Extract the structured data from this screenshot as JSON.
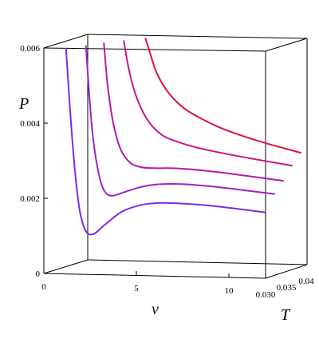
{
  "chart_data": {
    "type": "line",
    "title": "",
    "axes": {
      "x": {
        "label": "v",
        "range": [
          0,
          12
        ],
        "ticks": [
          "0",
          "5",
          "10"
        ]
      },
      "y": {
        "label": "P",
        "range": [
          0,
          0.006
        ],
        "ticks": [
          "0",
          "0.002",
          "0.004",
          "0.006"
        ]
      },
      "z": {
        "label": "T",
        "range": [
          0.03,
          0.04
        ],
        "ticks": [
          "0.030",
          "0.035",
          "0.04"
        ]
      }
    },
    "grid": false,
    "legend": "none",
    "colors": {
      "low_T": "#7b2be8",
      "high_T": "#e01040"
    },
    "series": [
      {
        "T": 0.03,
        "color": "#7b2be8",
        "points": [
          [
            1.2,
            0.006
          ],
          [
            1.4,
            0.0045
          ],
          [
            1.6,
            0.0032
          ],
          [
            1.8,
            0.0022
          ],
          [
            2.0,
            0.00155
          ],
          [
            2.3,
            0.00113
          ],
          [
            2.7,
            0.00108
          ],
          [
            3.3,
            0.00133
          ],
          [
            4.2,
            0.00168
          ],
          [
            5.2,
            0.00187
          ],
          [
            6.2,
            0.00194
          ],
          [
            7.5,
            0.00194
          ],
          [
            9,
            0.0019
          ],
          [
            10.5,
            0.00183
          ],
          [
            12,
            0.00175
          ]
        ]
      },
      {
        "T": 0.032,
        "color": "#9c22cc",
        "points": [
          [
            1.8,
            0.006
          ],
          [
            2.0,
            0.0046
          ],
          [
            2.2,
            0.0035
          ],
          [
            2.5,
            0.0026
          ],
          [
            2.8,
            0.00215
          ],
          [
            3.2,
            0.00203
          ],
          [
            3.8,
            0.00212
          ],
          [
            4.7,
            0.00227
          ],
          [
            5.7,
            0.00236
          ],
          [
            7,
            0.00238
          ],
          [
            8.5,
            0.00234
          ],
          [
            10,
            0.00227
          ],
          [
            12,
            0.00217
          ]
        ]
      },
      {
        "T": 0.034,
        "color": "#b31aa8",
        "points": [
          [
            2.3,
            0.006
          ],
          [
            2.5,
            0.0049
          ],
          [
            2.8,
            0.0039
          ],
          [
            3.2,
            0.0032
          ],
          [
            3.7,
            0.00285
          ],
          [
            4.3,
            0.00273
          ],
          [
            5,
            0.00271
          ],
          [
            6,
            0.00272
          ],
          [
            7,
            0.0027
          ],
          [
            8.5,
            0.00264
          ],
          [
            10,
            0.00256
          ],
          [
            12,
            0.00245
          ]
        ]
      },
      {
        "T": 0.036,
        "color": "#cc1585",
        "points": [
          [
            2.9,
            0.006
          ],
          [
            3.2,
            0.0052
          ],
          [
            3.6,
            0.0045
          ],
          [
            4.2,
            0.0039
          ],
          [
            5,
            0.00351
          ],
          [
            6,
            0.00332
          ],
          [
            7,
            0.00319
          ],
          [
            8.5,
            0.00305
          ],
          [
            10,
            0.00293
          ],
          [
            12,
            0.00278
          ]
        ]
      },
      {
        "T": 0.038,
        "color": "#e01040",
        "points": [
          [
            3.6,
            0.006
          ],
          [
            3.8,
            0.0057
          ],
          [
            4.2,
            0.0051
          ],
          [
            4.8,
            0.0046
          ],
          [
            5.6,
            0.0042
          ],
          [
            6.5,
            0.00393
          ],
          [
            7.5,
            0.0037
          ],
          [
            8.5,
            0.00352
          ],
          [
            10,
            0.0033
          ],
          [
            12,
            0.00305
          ]
        ]
      }
    ]
  }
}
